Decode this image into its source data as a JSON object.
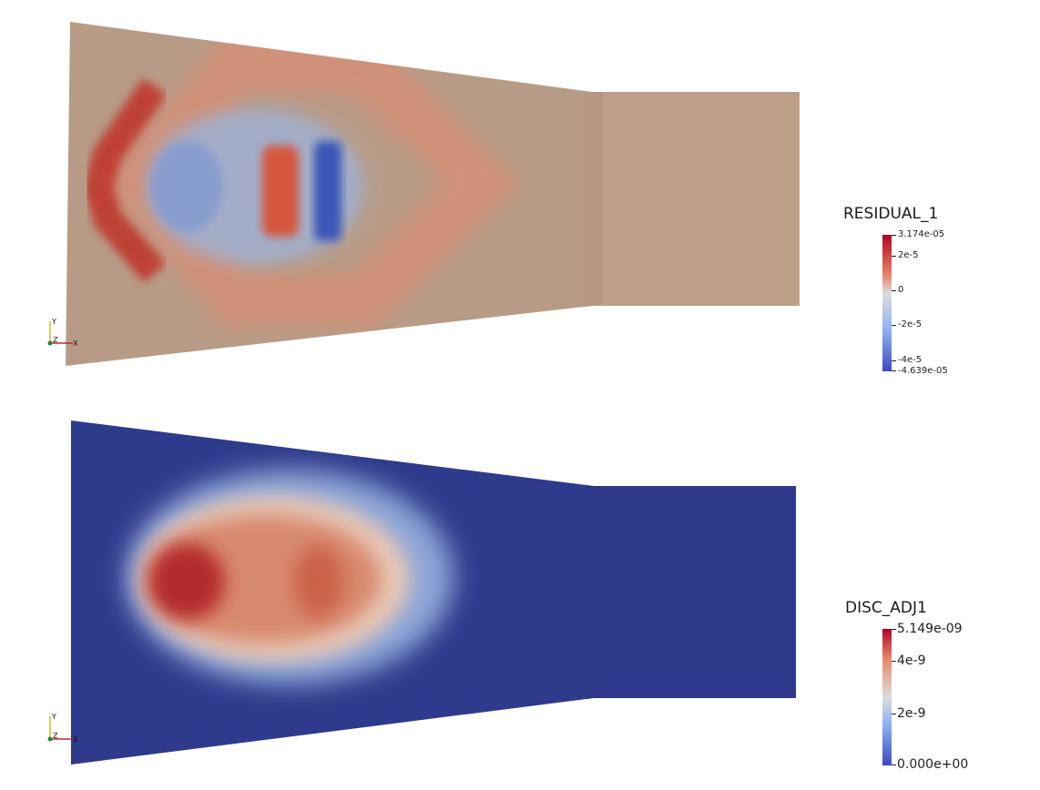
{
  "views": [
    {
      "field": "RESIDUAL_1",
      "colormap": {
        "high": "#b40426",
        "mid": "#dddddd",
        "low": "#3b4cc0"
      },
      "surface_color": "#b89b87",
      "colorbar": {
        "labels": [
          "3.174e-05",
          "2e-5",
          "0",
          "-2e-5",
          "-4e-5",
          "-4.639e-05"
        ]
      },
      "axes": {
        "y": "Y",
        "z": "Z",
        "x": "X"
      }
    },
    {
      "field": "DISC_ADJ1",
      "colormap": {
        "high": "#b40426",
        "mid": "#dddddd",
        "low": "#3b4cc0"
      },
      "surface_color": "#2e3a8c",
      "colorbar": {
        "labels": [
          "5.149e-09",
          "4e-9",
          "2e-9",
          "0.000e+00"
        ]
      },
      "axes": {
        "y": "Y",
        "z": "Z",
        "x": "X"
      }
    }
  ]
}
